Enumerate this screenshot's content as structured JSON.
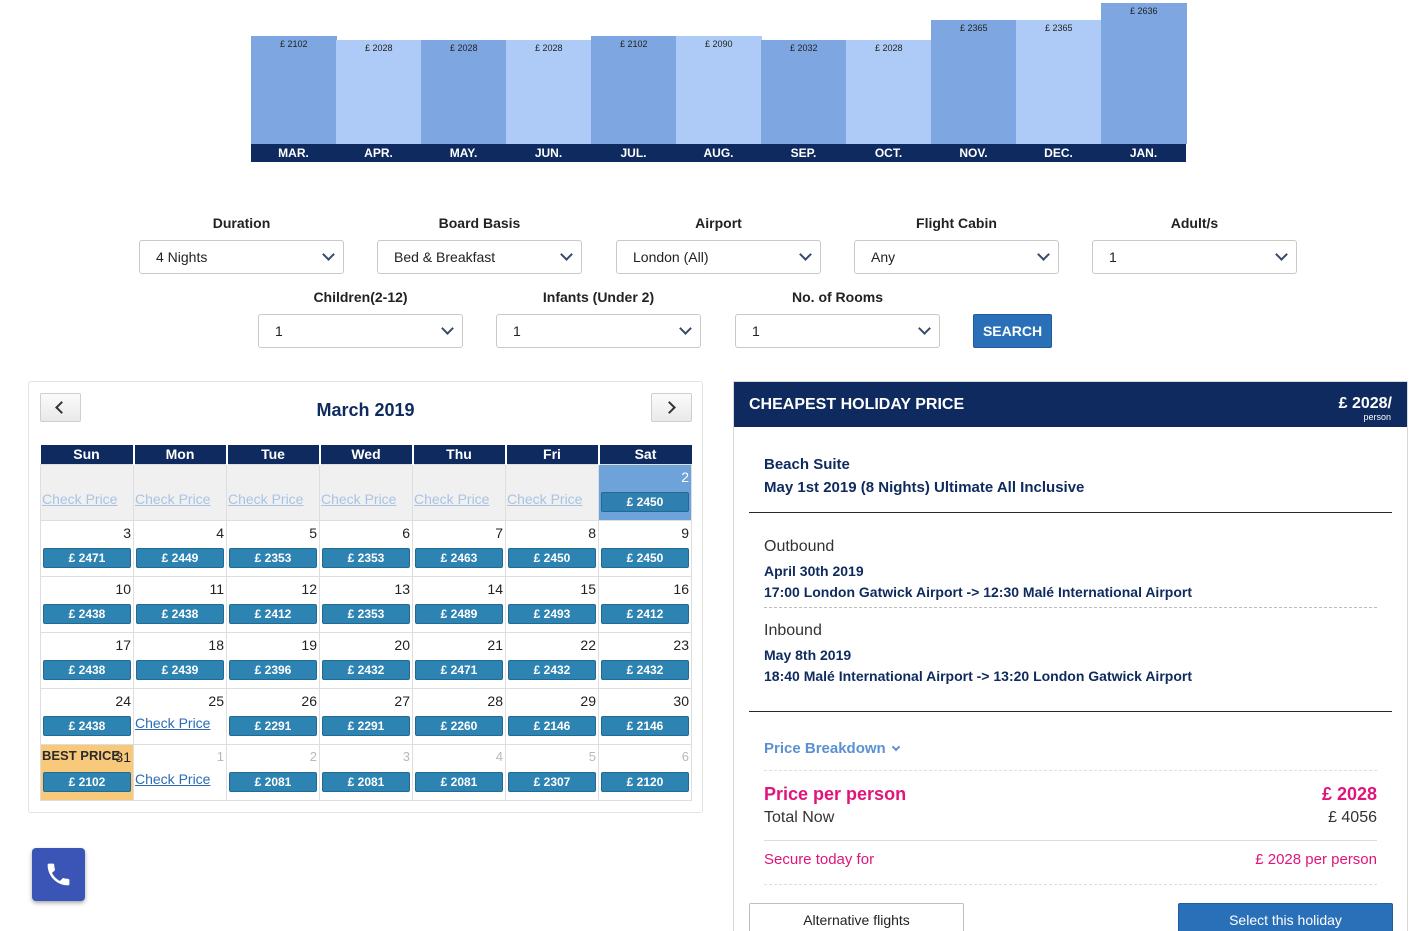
{
  "chart_data": {
    "type": "bar",
    "categories": [
      "MAR.",
      "APR.",
      "MAY.",
      "JUN.",
      "JUL.",
      "AUG.",
      "SEP.",
      "OCT.",
      "NOV.",
      "DEC.",
      "JAN."
    ],
    "value_labels": [
      "£ 2102",
      "£ 2028",
      "£ 2028",
      "£ 2028",
      "£ 2102",
      "£ 2090",
      "£ 2032",
      "£ 2028",
      "£ 2365",
      "£ 2365",
      "£ 2636"
    ],
    "values": [
      2102,
      2028,
      2028,
      2028,
      2102,
      2090,
      2032,
      2028,
      2365,
      2365,
      2636
    ],
    "colors": [
      "#7ea6e0",
      "#aecbf7"
    ]
  },
  "filters": {
    "duration": {
      "label": "Duration",
      "value": "4 Nights"
    },
    "board_basis": {
      "label": "Board Basis",
      "value": "Bed & Breakfast"
    },
    "airport": {
      "label": "Airport",
      "value": "London (All)"
    },
    "flight_cabin": {
      "label": "Flight Cabin",
      "value": "Any"
    },
    "adults": {
      "label": "Adult/s",
      "value": "1"
    },
    "children": {
      "label": "Children(2-12)",
      "value": "1"
    },
    "infants": {
      "label": "Infants (Under 2)",
      "value": "1"
    },
    "rooms": {
      "label": "No. of Rooms",
      "value": "1"
    },
    "search_label": "SEARCH"
  },
  "calendar": {
    "title": "March 2019",
    "weekdays": [
      "Sun",
      "Mon",
      "Tue",
      "Wed",
      "Thu",
      "Fri",
      "Sat"
    ],
    "check_label": "Check Price",
    "best_label": "BEST PRICE",
    "weeks": [
      [
        {
          "day": "",
          "type": "prev",
          "check": true
        },
        {
          "day": "",
          "type": "prev",
          "check": true
        },
        {
          "day": "",
          "type": "prev",
          "check": true
        },
        {
          "day": "",
          "type": "prev",
          "check": true
        },
        {
          "day": "",
          "type": "prev",
          "check": true
        },
        {
          "day": "",
          "type": "prev",
          "check": true
        },
        {
          "day": "2",
          "type": "selected",
          "price": "£ 2450"
        }
      ],
      [
        {
          "day": "3",
          "price": "£ 2471"
        },
        {
          "day": "4",
          "price": "£ 2449"
        },
        {
          "day": "5",
          "price": "£ 2353"
        },
        {
          "day": "6",
          "price": "£ 2353"
        },
        {
          "day": "7",
          "price": "£ 2463"
        },
        {
          "day": "8",
          "price": "£ 2450"
        },
        {
          "day": "9",
          "price": "£ 2450"
        }
      ],
      [
        {
          "day": "10",
          "price": "£ 2438"
        },
        {
          "day": "11",
          "price": "£ 2438"
        },
        {
          "day": "12",
          "price": "£ 2412"
        },
        {
          "day": "13",
          "price": "£ 2353"
        },
        {
          "day": "14",
          "price": "£ 2489"
        },
        {
          "day": "15",
          "price": "£ 2493"
        },
        {
          "day": "16",
          "price": "£ 2412"
        }
      ],
      [
        {
          "day": "17",
          "price": "£ 2438"
        },
        {
          "day": "18",
          "price": "£ 2439"
        },
        {
          "day": "19",
          "price": "£ 2396"
        },
        {
          "day": "20",
          "price": "£ 2432"
        },
        {
          "day": "21",
          "price": "£ 2471"
        },
        {
          "day": "22",
          "price": "£ 2432"
        },
        {
          "day": "23",
          "price": "£ 2432"
        }
      ],
      [
        {
          "day": "24",
          "price": "£ 2438"
        },
        {
          "day": "25",
          "check": true
        },
        {
          "day": "26",
          "price": "£ 2291"
        },
        {
          "day": "27",
          "price": "£ 2291"
        },
        {
          "day": "28",
          "price": "£ 2260"
        },
        {
          "day": "29",
          "price": "£ 2146"
        },
        {
          "day": "30",
          "price": "£ 2146"
        }
      ],
      [
        {
          "day": "31",
          "type": "best",
          "price": "£ 2102"
        },
        {
          "day": "1",
          "type": "next",
          "check": true
        },
        {
          "day": "2",
          "type": "next",
          "price": "£ 2081"
        },
        {
          "day": "3",
          "type": "next",
          "price": "£ 2081"
        },
        {
          "day": "4",
          "type": "next",
          "price": "£ 2081"
        },
        {
          "day": "5",
          "type": "next",
          "price": "£ 2307"
        },
        {
          "day": "6",
          "type": "next",
          "price": "£ 2120"
        }
      ]
    ]
  },
  "summary": {
    "header_title": "CHEAPEST HOLIDAY PRICE",
    "header_price": "£ 2028/",
    "header_unit": "person",
    "room": "Beach Suite",
    "stay": "May 1st 2019 (8 Nights) Ultimate All Inclusive",
    "outbound_label": "Outbound",
    "outbound_date": "April 30th 2019",
    "outbound_route": "17:00 London Gatwick Airport -> 12:30 Malé International Airport",
    "inbound_label": "Inbound",
    "inbound_date": "May 8th 2019",
    "inbound_route": "18:40 Malé International Airport -> 13:20 London Gatwick Airport",
    "breakdown_label": "Price Breakdown",
    "price_per_person_label": "Price per person",
    "price_per_person_value": "£ 2028",
    "total_label": "Total Now",
    "total_value": "£ 4056",
    "secure_label": "Secure today for",
    "secure_value": "£ 2028 per person",
    "alt_flights_label": "Alternative flights",
    "select_label": "Select this holiday"
  },
  "phone": {
    "icon": "phone-icon"
  }
}
